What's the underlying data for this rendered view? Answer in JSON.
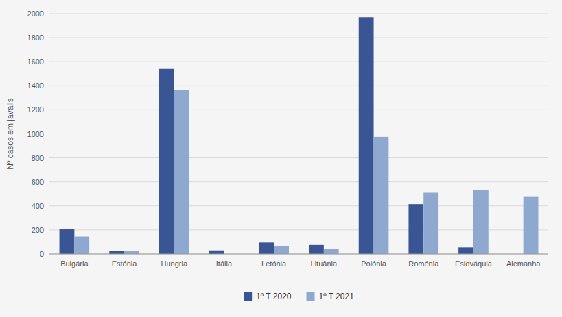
{
  "chart_data": {
    "type": "bar",
    "ylabel": "Nº casos em javalis",
    "categories": [
      "Bulgária",
      "Estónia",
      "Hungria",
      "Itália",
      "Letónia",
      "Lituânia",
      "Polónia",
      "Roménia",
      "Eslováquia",
      "Alemanha"
    ],
    "series": [
      {
        "name": "1º T 2020",
        "color": "#3A5594",
        "values": [
          205,
          25,
          1540,
          30,
          95,
          75,
          1970,
          415,
          55,
          0
        ]
      },
      {
        "name": "1º T 2021",
        "color": "#8FA8D0",
        "values": [
          145,
          25,
          1365,
          0,
          65,
          40,
          975,
          510,
          530,
          475
        ]
      }
    ],
    "ylim": [
      0,
      2000
    ],
    "yticks": [
      0,
      200,
      400,
      600,
      800,
      1000,
      1200,
      1400,
      1600,
      1800,
      2000
    ],
    "grid": true,
    "legend": "bottom"
  }
}
